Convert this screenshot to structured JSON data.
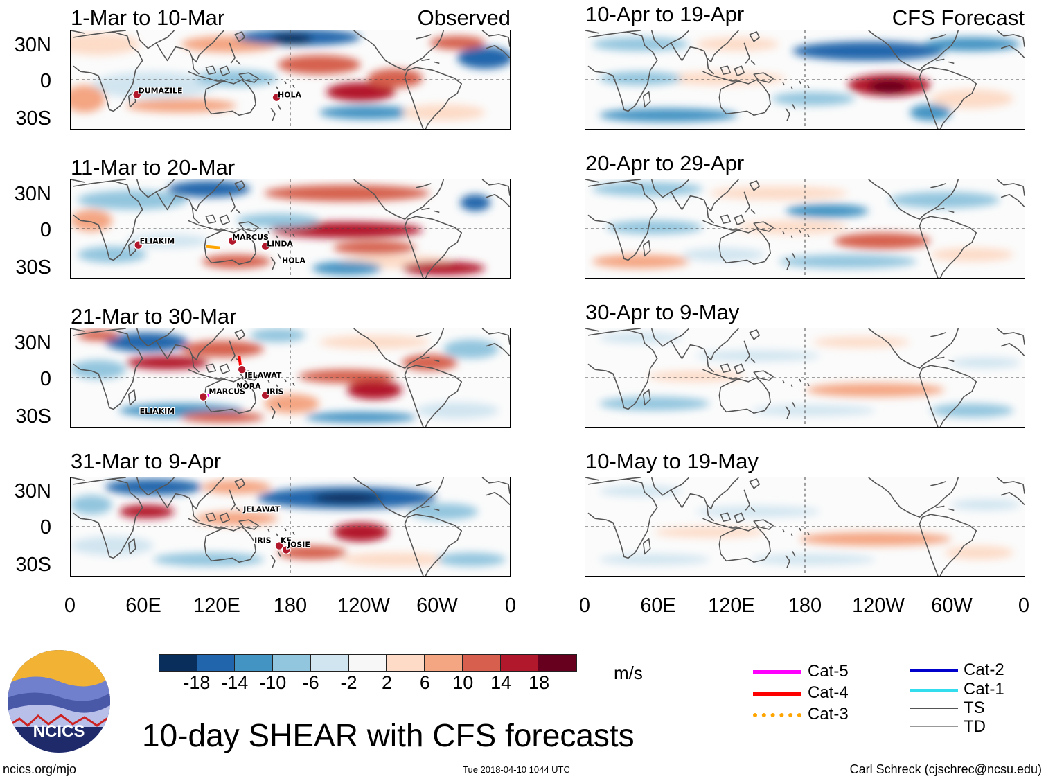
{
  "observed_label": "Observed",
  "forecast_label": "CFS Forecast",
  "lat_labels": [
    "30N",
    "0",
    "30S"
  ],
  "lon_labels": [
    "0",
    "60E",
    "120E",
    "180",
    "120W",
    "60W",
    "0"
  ],
  "observed_panels": [
    {
      "title": "1-Mar to 10-Mar",
      "storms": [
        "DUMAZILE",
        "HOLA"
      ]
    },
    {
      "title": "11-Mar to 20-Mar",
      "storms": [
        "ELIAKIM",
        "MARCUS",
        "LINDA",
        "HOLA"
      ]
    },
    {
      "title": "21-Mar to 30-Mar",
      "storms": [
        "JELAWAT",
        "NORA",
        "MARCUS",
        "IRIS",
        "ELIAKIM"
      ]
    },
    {
      "title": "31-Mar to 9-Apr",
      "storms": [
        "JELAWAT",
        "IRIS",
        "KE...",
        "JOSIE"
      ]
    }
  ],
  "forecast_panels": [
    {
      "title": "10-Apr to 19-Apr"
    },
    {
      "title": "20-Apr to 29-Apr"
    },
    {
      "title": "30-Apr to 9-May"
    },
    {
      "title": "10-May to 19-May"
    }
  ],
  "colorbar": {
    "units": "m/s",
    "ticks": [
      "-18",
      "-14",
      "-10",
      "-6",
      "-2",
      "2",
      "6",
      "10",
      "14",
      "18"
    ],
    "colors": [
      "#0a2e5c",
      "#2166ac",
      "#4393c3",
      "#92c5de",
      "#d1e5f0",
      "#f7f7f7",
      "#fddbc7",
      "#f4a582",
      "#d6604d",
      "#b2182b",
      "#67001f"
    ]
  },
  "legend": [
    {
      "label": "Cat-5",
      "color": "#ff00ff"
    },
    {
      "label": "Cat-4",
      "color": "#ff0000"
    },
    {
      "label": "Cat-3",
      "color": "#ffa500"
    },
    {
      "label": "Cat-2",
      "color": "#0000cc"
    },
    {
      "label": "Cat-1",
      "color": "#33ddee"
    },
    {
      "label": "TS",
      "color": "#555555"
    },
    {
      "label": "TD",
      "color": "#999999"
    }
  ],
  "logo_text": "NCICS",
  "main_title": "10-day SHEAR with CFS forecasts",
  "footer_left": "ncics.org/mjo",
  "footer_center": "Tue 2018-04-10 1044 UTC",
  "footer_right": "Carl Schreck (cjschrec@ncsu.edu)"
}
